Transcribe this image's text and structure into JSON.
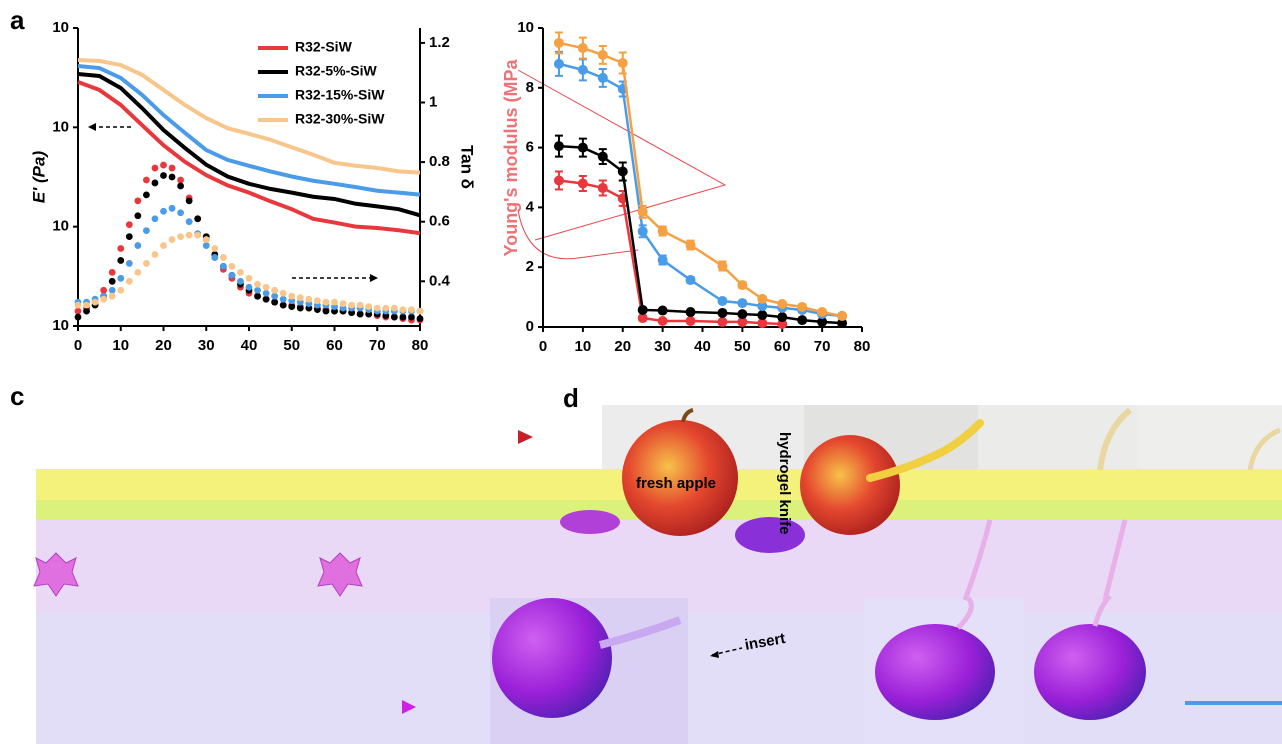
{
  "chart_data": [
    {
      "type": "line",
      "y_label": "E' (Pa)",
      "y2_label": "Tan δ",
      "yscale": "log",
      "ylim": [
        10,
        10000
      ],
      "yticks": [
        {
          "value": 10,
          "label": "10"
        },
        {
          "value": 100,
          "label": "10"
        },
        {
          "value": 1000,
          "label": "10"
        },
        {
          "value": 10000,
          "label": "10"
        }
      ],
      "y2lim": [
        0.25,
        1.25
      ],
      "y2ticks": [
        0.4,
        0.6,
        0.8,
        1.0,
        1.2
      ],
      "xlim": [
        0,
        80
      ],
      "xticks": [
        0,
        10,
        20,
        30,
        40,
        50,
        60,
        70,
        80
      ],
      "x": [
        0,
        5,
        10,
        15,
        20,
        25,
        30,
        35,
        40,
        45,
        50,
        55,
        60,
        65,
        70,
        75,
        80
      ],
      "x2": [
        0,
        2,
        4,
        6,
        8,
        10,
        12,
        14,
        16,
        18,
        20,
        22,
        24,
        26,
        28,
        30,
        32,
        34,
        36,
        38,
        40,
        42,
        44,
        46,
        48,
        50,
        52,
        54,
        56,
        58,
        60,
        62,
        64,
        66,
        68,
        70,
        72,
        74,
        76,
        78,
        80
      ],
      "series": [
        {
          "name": "R32-SiW",
          "color": "#e8383d",
          "values": [
            2860,
            2380,
            1680,
            1050,
            660,
            450,
            330,
            260,
            220,
            180,
            150,
            120,
            110,
            100,
            97,
            92,
            86
          ],
          "y2_values": [
            0.3,
            0.31,
            0.33,
            0.37,
            0.43,
            0.51,
            0.59,
            0.67,
            0.74,
            0.78,
            0.79,
            0.78,
            0.74,
            0.68,
            0.61,
            0.54,
            0.48,
            0.44,
            0.41,
            0.38,
            0.36,
            0.35,
            0.34,
            0.33,
            0.32,
            0.32,
            0.315,
            0.31,
            0.31,
            0.305,
            0.3,
            0.3,
            0.295,
            0.29,
            0.29,
            0.285,
            0.28,
            0.28,
            0.275,
            0.27,
            0.27
          ]
        },
        {
          "name": "R32-5%-SiW",
          "color": "#000000",
          "values": [
            3440,
            3290,
            2490,
            1560,
            940,
            620,
            420,
            320,
            270,
            240,
            220,
            200,
            190,
            170,
            160,
            150,
            130
          ],
          "y2_values": [
            0.28,
            0.3,
            0.32,
            0.35,
            0.4,
            0.47,
            0.55,
            0.62,
            0.69,
            0.73,
            0.755,
            0.75,
            0.72,
            0.67,
            0.61,
            0.55,
            0.49,
            0.45,
            0.42,
            0.39,
            0.37,
            0.35,
            0.34,
            0.33,
            0.32,
            0.315,
            0.31,
            0.31,
            0.305,
            0.3,
            0.3,
            0.3,
            0.295,
            0.29,
            0.29,
            0.29,
            0.285,
            0.28,
            0.28,
            0.28,
            0.275
          ]
        },
        {
          "name": "R32-15%-SiW",
          "color": "#4a9be8",
          "values": [
            4140,
            3950,
            3140,
            2120,
            1330,
            880,
            590,
            470,
            410,
            360,
            320,
            290,
            270,
            250,
            230,
            220,
            210
          ],
          "y2_values": [
            0.33,
            0.33,
            0.34,
            0.35,
            0.37,
            0.41,
            0.46,
            0.52,
            0.57,
            0.61,
            0.635,
            0.645,
            0.63,
            0.6,
            0.56,
            0.52,
            0.48,
            0.45,
            0.42,
            0.4,
            0.38,
            0.37,
            0.36,
            0.35,
            0.34,
            0.335,
            0.33,
            0.325,
            0.32,
            0.32,
            0.315,
            0.31,
            0.31,
            0.31,
            0.305,
            0.3,
            0.3,
            0.3,
            0.3,
            0.3,
            0.3
          ]
        },
        {
          "name": "R32-30%-SiW",
          "color": "#f8c58a",
          "values": [
            4760,
            4660,
            4240,
            3370,
            2380,
            1680,
            1240,
            980,
            860,
            750,
            630,
            530,
            440,
            410,
            390,
            360,
            350
          ],
          "y2_values": [
            0.32,
            0.32,
            0.33,
            0.34,
            0.35,
            0.37,
            0.4,
            0.43,
            0.46,
            0.49,
            0.52,
            0.54,
            0.55,
            0.555,
            0.555,
            0.54,
            0.51,
            0.48,
            0.45,
            0.43,
            0.41,
            0.39,
            0.38,
            0.37,
            0.36,
            0.35,
            0.345,
            0.34,
            0.335,
            0.33,
            0.33,
            0.325,
            0.32,
            0.32,
            0.315,
            0.31,
            0.31,
            0.31,
            0.305,
            0.305,
            0.3
          ]
        }
      ]
    },
    {
      "type": "errorbar",
      "y_label": "Young's modulus (MPa",
      "ylim": [
        0,
        10
      ],
      "yticks": [
        0,
        2,
        4,
        6,
        8,
        10
      ],
      "xlim": [
        0,
        80
      ],
      "xticks": [
        0,
        10,
        20,
        30,
        40,
        50,
        60,
        70,
        80
      ],
      "series": [
        {
          "color": "#e8383d",
          "x": [
            4,
            10,
            15,
            20,
            25,
            30,
            37,
            45,
            50,
            55,
            60
          ],
          "values": [
            4.9,
            4.8,
            4.65,
            4.3,
            0.3,
            0.2,
            0.2,
            0.17,
            0.17,
            0.13,
            0.1
          ],
          "errors": [
            0.3,
            0.25,
            0.25,
            0.25,
            0.08,
            0.05,
            0.05,
            0.05,
            0.05,
            0.05,
            0.05
          ]
        },
        {
          "color": "#000000",
          "x": [
            4,
            10,
            15,
            20,
            25,
            30,
            37,
            45,
            50,
            55,
            60,
            65,
            70,
            75
          ],
          "values": [
            6.05,
            6.0,
            5.7,
            5.2,
            0.57,
            0.55,
            0.5,
            0.47,
            0.43,
            0.4,
            0.33,
            0.23,
            0.17,
            0.13
          ],
          "errors": [
            0.35,
            0.3,
            0.25,
            0.3,
            0.05,
            0.05,
            0.05,
            0.05,
            0.05,
            0.05,
            0.05,
            0.05,
            0.05,
            0.05
          ]
        },
        {
          "color": "#4a9be8",
          "x": [
            4,
            10,
            15,
            20,
            25,
            30,
            37,
            45,
            50,
            55,
            60,
            65,
            70,
            75
          ],
          "values": [
            8.8,
            8.6,
            8.33,
            7.96,
            3.2,
            2.24,
            1.57,
            0.87,
            0.8,
            0.7,
            0.64,
            0.57,
            0.43,
            0.37
          ],
          "errors": [
            0.4,
            0.35,
            0.3,
            0.25,
            0.2,
            0.15,
            0.1,
            0.08,
            0.06,
            0.05,
            0.05,
            0.05,
            0.05,
            0.05
          ]
        },
        {
          "color": "#f5a043",
          "x": [
            4,
            10,
            15,
            20,
            25,
            30,
            37,
            45,
            50,
            55,
            60,
            65,
            70,
            75
          ],
          "values": [
            9.5,
            9.33,
            9.1,
            8.83,
            3.85,
            3.21,
            2.74,
            2.04,
            1.4,
            0.94,
            0.77,
            0.67,
            0.5,
            0.37
          ],
          "errors": [
            0.35,
            0.35,
            0.3,
            0.35,
            0.2,
            0.15,
            0.15,
            0.15,
            0.1,
            0.08,
            0.06,
            0.05,
            0.05,
            0.05
          ]
        }
      ]
    }
  ],
  "panels": [
    {
      "label": "a"
    },
    {
      "label": "c"
    },
    {
      "label": "d",
      "annotations": [
        "fresh apple",
        "hydrogel knife",
        "insert"
      ]
    }
  ]
}
